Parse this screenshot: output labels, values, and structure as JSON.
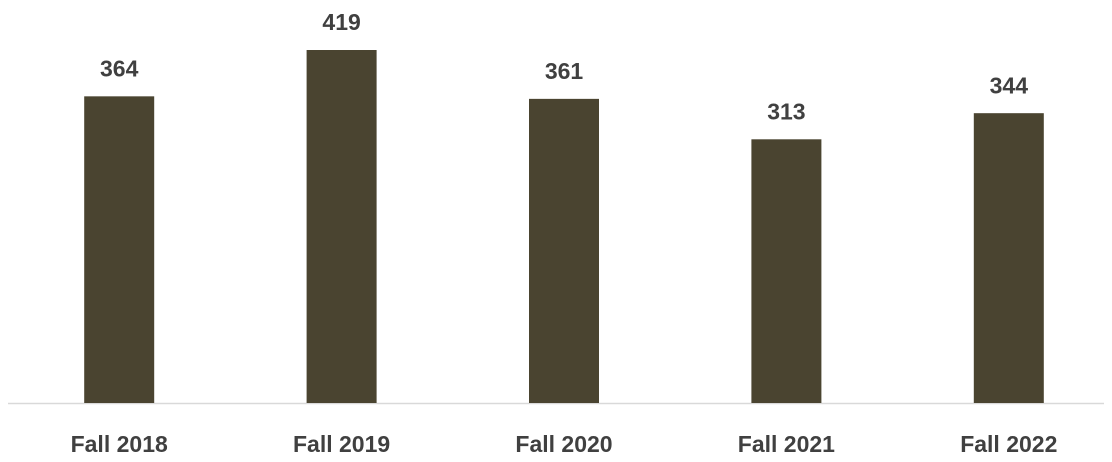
{
  "chart_data": {
    "type": "bar",
    "categories": [
      "Fall 2018",
      "Fall 2019",
      "Fall 2020",
      "Fall 2021",
      "Fall 2022"
    ],
    "values": [
      364,
      419,
      361,
      313,
      344
    ],
    "color": "#4a4430"
  }
}
